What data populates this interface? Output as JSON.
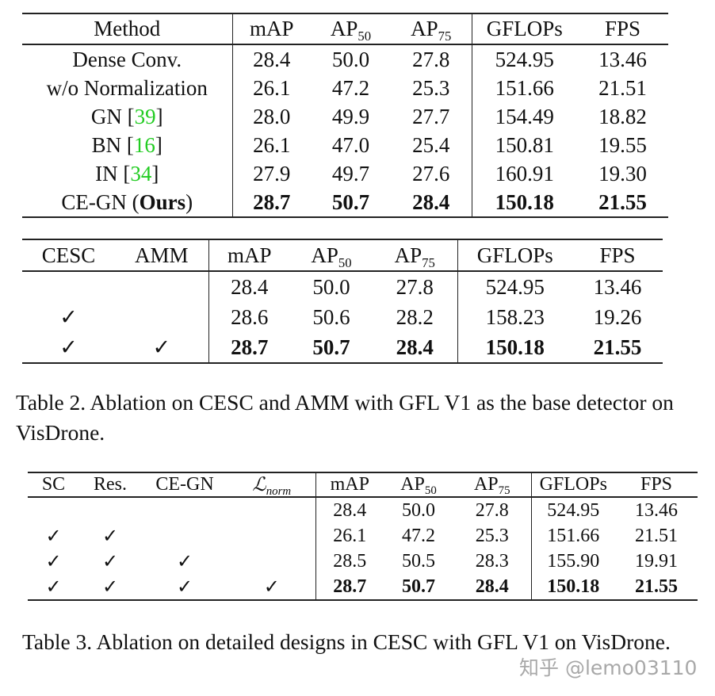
{
  "table1": {
    "headers": [
      {
        "text": "Method"
      },
      {
        "text": "mAP"
      },
      {
        "text": "AP",
        "sub": "50"
      },
      {
        "text": "AP",
        "sub": "75"
      },
      {
        "text": "GFLOPs"
      },
      {
        "text": "FPS"
      }
    ],
    "rows": [
      {
        "method": "Dense Conv.",
        "values": [
          "28.4",
          "50.0",
          "27.8",
          "524.95",
          "13.46"
        ]
      },
      {
        "method": "w/o Normalization",
        "values": [
          "26.1",
          "47.2",
          "25.3",
          "151.66",
          "21.51"
        ]
      },
      {
        "method": "GN [",
        "ref": "39",
        "close": "]",
        "values": [
          "28.0",
          "49.9",
          "27.7",
          "154.49",
          "18.82"
        ]
      },
      {
        "method": "BN [",
        "ref": "16",
        "close": "]",
        "values": [
          "26.1",
          "47.0",
          "25.4",
          "150.81",
          "19.55"
        ]
      },
      {
        "method": "IN [",
        "ref": "34",
        "close": "]",
        "values": [
          "27.9",
          "49.7",
          "27.6",
          "160.91",
          "19.30"
        ]
      },
      {
        "method": "CE-GN (",
        "bold_part": "Ours",
        "close": ")",
        "bold": true,
        "values": [
          "28.7",
          "50.7",
          "28.4",
          "150.18",
          "21.55"
        ]
      }
    ],
    "ref_color": "#22cc22"
  },
  "table2": {
    "headers": [
      {
        "text": "CESC"
      },
      {
        "text": "AMM"
      },
      {
        "text": "mAP"
      },
      {
        "text": "AP",
        "sub": "50"
      },
      {
        "text": "AP",
        "sub": "75"
      },
      {
        "text": "GFLOPs"
      },
      {
        "text": "FPS"
      }
    ],
    "rows": [
      {
        "checks": [
          "",
          ""
        ],
        "values": [
          "28.4",
          "50.0",
          "27.8",
          "524.95",
          "13.46"
        ]
      },
      {
        "checks": [
          "✓",
          ""
        ],
        "values": [
          "28.6",
          "50.6",
          "28.2",
          "158.23",
          "19.26"
        ]
      },
      {
        "checks": [
          "✓",
          "✓"
        ],
        "bold": true,
        "values": [
          "28.7",
          "50.7",
          "28.4",
          "150.18",
          "21.55"
        ]
      }
    ],
    "caption": "Table 2.  Ablation on CESC and AMM with GFL V1 as the base detector on VisDrone."
  },
  "table3": {
    "headers": [
      {
        "text": "SC"
      },
      {
        "text": "Res."
      },
      {
        "text": "CE-GN"
      },
      {
        "text": "ℒ",
        "sub": "norm",
        "italic": true
      },
      {
        "text": "mAP"
      },
      {
        "text": "AP",
        "sub": "50"
      },
      {
        "text": "AP",
        "sub": "75"
      },
      {
        "text": "GFLOPs"
      },
      {
        "text": "FPS"
      }
    ],
    "rows": [
      {
        "checks": [
          "",
          "",
          "",
          ""
        ],
        "values": [
          "28.4",
          "50.0",
          "27.8",
          "524.95",
          "13.46"
        ]
      },
      {
        "checks": [
          "✓",
          "✓",
          "",
          ""
        ],
        "values": [
          "26.1",
          "47.2",
          "25.3",
          "151.66",
          "21.51"
        ]
      },
      {
        "checks": [
          "✓",
          "✓",
          "✓",
          ""
        ],
        "values": [
          "28.5",
          "50.5",
          "28.3",
          "155.90",
          "19.91"
        ]
      },
      {
        "checks": [
          "✓",
          "✓",
          "✓",
          "✓"
        ],
        "bold": true,
        "values": [
          "28.7",
          "50.7",
          "28.4",
          "150.18",
          "21.55"
        ]
      }
    ],
    "caption": "Table 3.  Ablation on detailed designs in CESC with GFL V1 on VisDrone."
  },
  "watermark": "知乎 @lemo03110"
}
